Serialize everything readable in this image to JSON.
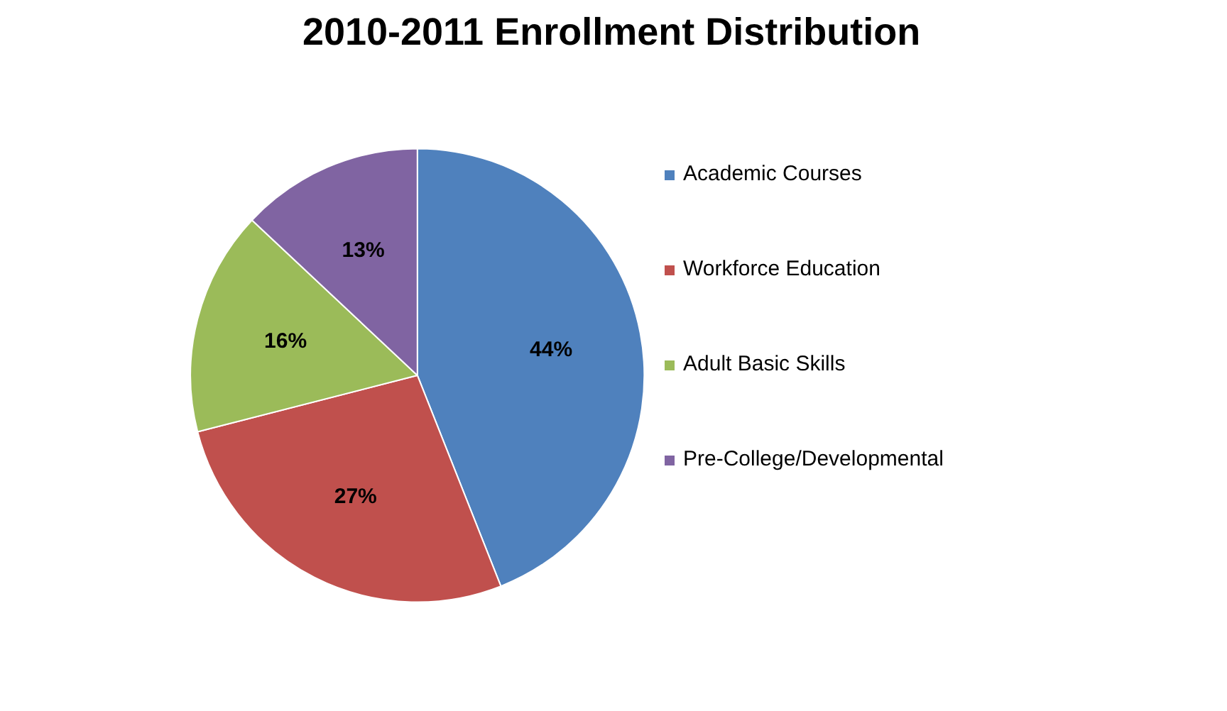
{
  "chart_data": {
    "type": "pie",
    "title": "2010-2011 Enrollment Distribution",
    "categories": [
      "Academic Courses",
      "Workforce Education",
      "Adult Basic Skills",
      "Pre-College/Developmental"
    ],
    "values": [
      44,
      27,
      16,
      13
    ],
    "colors": [
      "#4f81bd",
      "#c0504d",
      "#9bbb59",
      "#8064a2"
    ],
    "value_labels": [
      "44%",
      "27%",
      "16%",
      "13%"
    ],
    "legend": "right"
  }
}
